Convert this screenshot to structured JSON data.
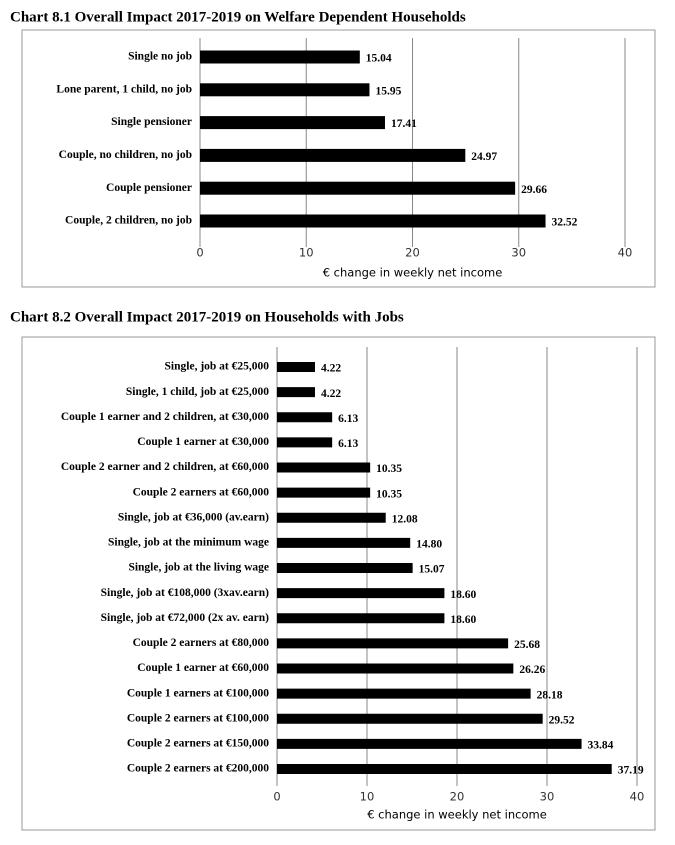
{
  "chart_data": [
    {
      "type": "bar",
      "orientation": "horizontal",
      "title": "Chart 8.1  Overall Impact 2017-2019 on Welfare Dependent Households",
      "x_label": "€ change in weekly net income",
      "categories": [
        "Single no job",
        "Lone parent, 1 child, no job",
        "Single pensioner",
        "Couple, no children, no job",
        "Couple pensioner",
        "Couple, 2 children, no job"
      ],
      "values": [
        15.04,
        15.95,
        17.41,
        24.97,
        29.66,
        32.52
      ],
      "color": "#000000",
      "xlim": [
        0,
        40
      ],
      "xticks": [
        0,
        10,
        20,
        30,
        40
      ],
      "grid": true
    },
    {
      "type": "bar",
      "orientation": "horizontal",
      "title": "Chart 8.2  Overall Impact 2017-2019 on Households with Jobs",
      "x_label": "€ change in weekly net income",
      "categories": [
        "Single, job at €25,000",
        "Single, 1 child, job at €25,000",
        "Couple 1 earner and 2 children, at €30,000",
        "Couple 1 earner at €30,000",
        "Couple 2 earner and 2 children, at €60,000",
        "Couple 2 earners at €60,000",
        "Single, job at €36,000 (av.earn)",
        "Single, job at the minimum wage",
        "Single, job at the living wage",
        "Single, job at €108,000 (3xav.earn)",
        "Single, job at €72,000 (2x av. earn)",
        "Couple 2 earners at €80,000",
        "Couple 1 earner at €60,000",
        "Couple 1 earners at €100,000",
        "Couple 2 earners at €100,000",
        "Couple 2 earners at €150,000",
        "Couple 2 earners at €200,000"
      ],
      "values": [
        4.22,
        4.22,
        6.13,
        6.13,
        10.35,
        10.35,
        12.08,
        14.8,
        15.07,
        18.6,
        18.6,
        25.68,
        26.26,
        28.18,
        29.52,
        33.84,
        37.19
      ],
      "value_labels": [
        "4.22",
        "4.22",
        "6.13",
        "6.13",
        "10.35",
        "10.35",
        "12.08",
        "14.80",
        "15.07",
        "18.60",
        "18.60",
        "25.68",
        "26.26",
        "28.18",
        "29.52",
        "33.84",
        "37.19"
      ],
      "color": "#000000",
      "xlim": [
        0,
        40
      ],
      "xticks": [
        0,
        10,
        20,
        30,
        40
      ],
      "grid": true
    }
  ]
}
